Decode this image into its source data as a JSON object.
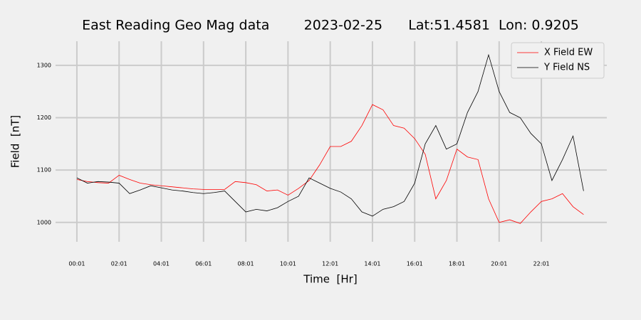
{
  "chart_data": {
    "type": "line",
    "title": "East Reading Geo Mag data        2023-02-25      Lat:51.4581  Lon: 0.9205",
    "xlabel": "Time  [Hr]",
    "ylabel": "Field  [nT]",
    "x": [
      0,
      0.5,
      1,
      1.5,
      2,
      2.5,
      3,
      3.5,
      4,
      4.5,
      5,
      5.5,
      6,
      6.5,
      7,
      7.5,
      8,
      8.5,
      9,
      9.5,
      10,
      10.5,
      11,
      11.5,
      12,
      12.5,
      13,
      13.5,
      14,
      14.5,
      15,
      15.5,
      16,
      16.5,
      17,
      17.5,
      18,
      18.5,
      19,
      19.5,
      20,
      20.5,
      21,
      21.5,
      22,
      22.5,
      23,
      23.5,
      24
    ],
    "series": [
      {
        "name": "X Field EW",
        "color": "#ff0000",
        "values": [
          1082,
          1078,
          1076,
          1075,
          1090,
          1082,
          1075,
          1072,
          1070,
          1068,
          1066,
          1064,
          1063,
          1063,
          1063,
          1078,
          1076,
          1072,
          1060,
          1062,
          1052,
          1065,
          1080,
          1110,
          1145,
          1145,
          1155,
          1185,
          1225,
          1215,
          1185,
          1180,
          1160,
          1130,
          1045,
          1080,
          1140,
          1125,
          1120,
          1045,
          1000,
          1005,
          998,
          1020,
          1040,
          1045,
          1055,
          1030,
          1015
        ]
      },
      {
        "name": "Y Field NS",
        "color": "#000000",
        "values": [
          1085,
          1075,
          1078,
          1077,
          1075,
          1055,
          1062,
          1070,
          1066,
          1062,
          1060,
          1057,
          1055,
          1057,
          1060,
          1040,
          1020,
          1025,
          1022,
          1028,
          1040,
          1050,
          1085,
          1075,
          1065,
          1058,
          1045,
          1020,
          1012,
          1025,
          1030,
          1040,
          1075,
          1150,
          1185,
          1140,
          1150,
          1210,
          1250,
          1320,
          1250,
          1210,
          1200,
          1170,
          1150,
          1080,
          1120,
          1165,
          1060
        ]
      }
    ],
    "xlim": [
      -1.01,
      25.1
    ],
    "ylim": [
      963,
      1346
    ],
    "xticks": [
      {
        "value": 0,
        "label": "00:01"
      },
      {
        "value": 2,
        "label": "02:01"
      },
      {
        "value": 4,
        "label": "04:01"
      },
      {
        "value": 6,
        "label": "06:01"
      },
      {
        "value": 8,
        "label": "08:01"
      },
      {
        "value": 10,
        "label": "10:01"
      },
      {
        "value": 12,
        "label": "12:01"
      },
      {
        "value": 14,
        "label": "14:01"
      },
      {
        "value": 16,
        "label": "16:01"
      },
      {
        "value": 18,
        "label": "18:01"
      },
      {
        "value": 20,
        "label": "20:01"
      },
      {
        "value": 22,
        "label": "22:01"
      }
    ],
    "yticks": [
      1000,
      1100,
      1200,
      1300
    ],
    "grid": true,
    "legend": "upper right"
  }
}
